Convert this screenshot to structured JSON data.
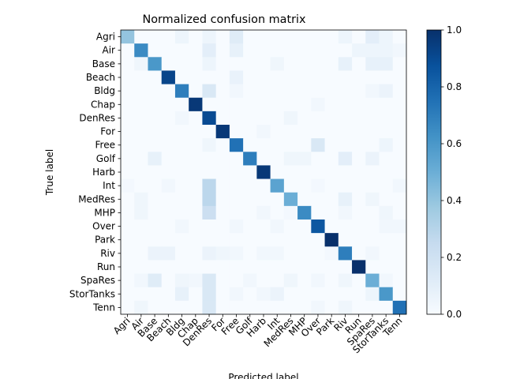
{
  "chart_data": {
    "type": "heatmap",
    "title": "Normalized confusion matrix",
    "xlabel": "Predicted label",
    "ylabel": "True label",
    "labels": [
      "Agri",
      "Air",
      "Base",
      "Beach",
      "Bldg",
      "Chap",
      "DenRes",
      "For",
      "Free",
      "Golf",
      "Harb",
      "Int",
      "MedRes",
      "MHP",
      "Over",
      "Park",
      "Riv",
      "Run",
      "SpaRes",
      "StorTanks",
      "Tenn"
    ],
    "colorbar": {
      "min": 0.0,
      "max": 1.0,
      "ticks": [
        "0.0",
        "0.2",
        "0.4",
        "0.6",
        "0.8",
        "1.0"
      ],
      "colormap": "Blues"
    },
    "matrix": [
      [
        0.4,
        0,
        0,
        0,
        0.05,
        0,
        0.05,
        0,
        0.12,
        0,
        0,
        0,
        0,
        0,
        0,
        0,
        0.05,
        0,
        0.1,
        0.05,
        0
      ],
      [
        0,
        0.65,
        0,
        0,
        0,
        0,
        0.1,
        0,
        0.08,
        0,
        0,
        0,
        0,
        0,
        0,
        0,
        0,
        0.05,
        0.05,
        0.05,
        0.03
      ],
      [
        0,
        0.04,
        0.6,
        0,
        0,
        0,
        0.05,
        0,
        0,
        0,
        0,
        0.04,
        0,
        0,
        0,
        0,
        0.08,
        0,
        0.08,
        0.08,
        0
      ],
      [
        0,
        0,
        0,
        0.92,
        0,
        0,
        0,
        0,
        0.07,
        0,
        0,
        0,
        0,
        0,
        0,
        0,
        0,
        0,
        0,
        0,
        0
      ],
      [
        0,
        0,
        0,
        0,
        0.7,
        0,
        0.15,
        0,
        0.03,
        0,
        0,
        0,
        0,
        0,
        0,
        0,
        0,
        0,
        0.03,
        0.06,
        0
      ],
      [
        0,
        0,
        0,
        0,
        0,
        0.97,
        0,
        0,
        0,
        0,
        0,
        0,
        0,
        0,
        0.03,
        0,
        0,
        0,
        0,
        0,
        0
      ],
      [
        0,
        0,
        0,
        0,
        0.03,
        0,
        0.9,
        0,
        0,
        0,
        0,
        0,
        0.04,
        0,
        0,
        0,
        0,
        0,
        0,
        0,
        0
      ],
      [
        0,
        0,
        0,
        0,
        0,
        0,
        0,
        0.97,
        0,
        0,
        0.03,
        0,
        0,
        0,
        0,
        0,
        0,
        0,
        0,
        0,
        0
      ],
      [
        0,
        0,
        0,
        0,
        0,
        0,
        0.04,
        0,
        0.75,
        0,
        0,
        0,
        0,
        0,
        0.15,
        0,
        0,
        0,
        0,
        0.05,
        0
      ],
      [
        0,
        0,
        0.08,
        0,
        0,
        0,
        0,
        0,
        0,
        0.7,
        0,
        0,
        0.04,
        0.04,
        0,
        0,
        0.1,
        0,
        0.06,
        0,
        0
      ],
      [
        0,
        0,
        0,
        0,
        0,
        0,
        0,
        0,
        0,
        0,
        0.97,
        0,
        0,
        0,
        0,
        0,
        0,
        0,
        0,
        0,
        0
      ],
      [
        0.02,
        0,
        0,
        0.03,
        0,
        0,
        0.28,
        0,
        0,
        0,
        0,
        0.55,
        0,
        0,
        0.02,
        0,
        0,
        0,
        0,
        0,
        0.03
      ],
      [
        0,
        0.04,
        0,
        0,
        0,
        0,
        0.28,
        0,
        0,
        0,
        0,
        0,
        0.5,
        0,
        0,
        0,
        0.08,
        0,
        0.04,
        0,
        0
      ],
      [
        0,
        0.04,
        0,
        0,
        0,
        0,
        0.22,
        0,
        0,
        0,
        0.03,
        0,
        0.02,
        0.65,
        0,
        0,
        0.03,
        0,
        0,
        0.04,
        0
      ],
      [
        0,
        0,
        0,
        0,
        0.03,
        0,
        0,
        0,
        0.03,
        0,
        0,
        0.03,
        0,
        0,
        0.85,
        0,
        0,
        0,
        0,
        0.03,
        0.03
      ],
      [
        0,
        0,
        0,
        0,
        0,
        0,
        0,
        0,
        0,
        0,
        0,
        0,
        0,
        0,
        0,
        1.0,
        0,
        0,
        0,
        0,
        0
      ],
      [
        0,
        0,
        0.06,
        0.06,
        0,
        0,
        0.06,
        0.04,
        0.03,
        0,
        0.03,
        0.03,
        0,
        0,
        0,
        0.02,
        0.7,
        0,
        0.03,
        0,
        0
      ],
      [
        0,
        0,
        0,
        0,
        0,
        0,
        0,
        0,
        0,
        0,
        0,
        0,
        0,
        0,
        0,
        0,
        0,
        1.0,
        0,
        0,
        0
      ],
      [
        0,
        0.03,
        0.12,
        0,
        0.04,
        0.03,
        0.15,
        0,
        0,
        0.03,
        0,
        0,
        0.04,
        0,
        0.03,
        0,
        0.04,
        0,
        0.5,
        0.03,
        0
      ],
      [
        0,
        0,
        0,
        0,
        0.08,
        0,
        0.15,
        0,
        0.03,
        0,
        0.03,
        0.06,
        0,
        0,
        0,
        0,
        0,
        0,
        0.05,
        0.6,
        0
      ],
      [
        0,
        0.04,
        0,
        0,
        0,
        0,
        0.15,
        0,
        0,
        0,
        0,
        0,
        0,
        0,
        0.03,
        0,
        0.04,
        0,
        0,
        0,
        0.75
      ]
    ]
  }
}
